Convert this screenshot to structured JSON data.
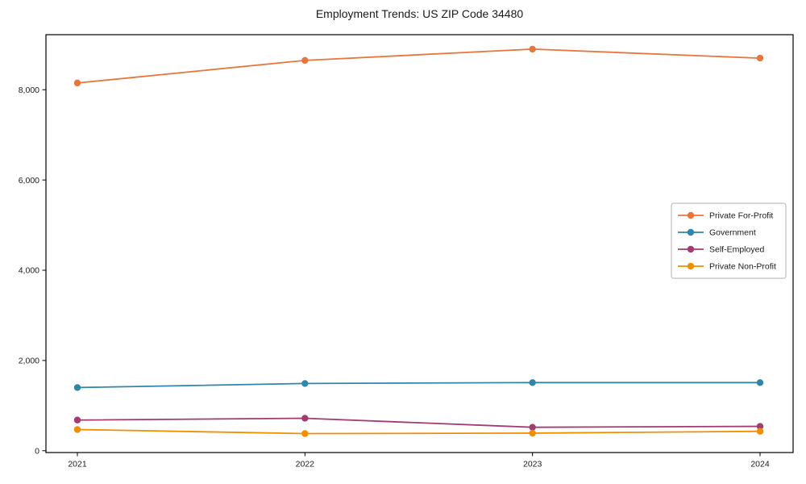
{
  "chart_data": {
    "type": "line",
    "title": "Employment Trends: US ZIP Code 34480",
    "xlabel": "",
    "ylabel": "",
    "x": [
      2021,
      2022,
      2023,
      2024
    ],
    "xtick_labels": [
      "2021",
      "2022",
      "2023",
      "2024"
    ],
    "yticks": [
      0,
      2000,
      4000,
      6000,
      8000
    ],
    "ytick_labels": [
      "0",
      "2,000",
      "4,000",
      "6,000",
      "8,000"
    ],
    "ylim": [
      -40,
      9220
    ],
    "grid": false,
    "marker": "circle",
    "legend_position": "center right",
    "series": [
      {
        "name": "Private For-Profit",
        "color": "#E8763C",
        "values": [
          8150,
          8650,
          8900,
          8700
        ]
      },
      {
        "name": "Government",
        "color": "#2E86AB",
        "values": [
          1400,
          1490,
          1510,
          1510
        ]
      },
      {
        "name": "Self-Employed",
        "color": "#A23B72",
        "values": [
          680,
          720,
          520,
          540
        ]
      },
      {
        "name": "Private Non-Profit",
        "color": "#F18F01",
        "values": [
          470,
          380,
          390,
          430
        ]
      }
    ]
  }
}
